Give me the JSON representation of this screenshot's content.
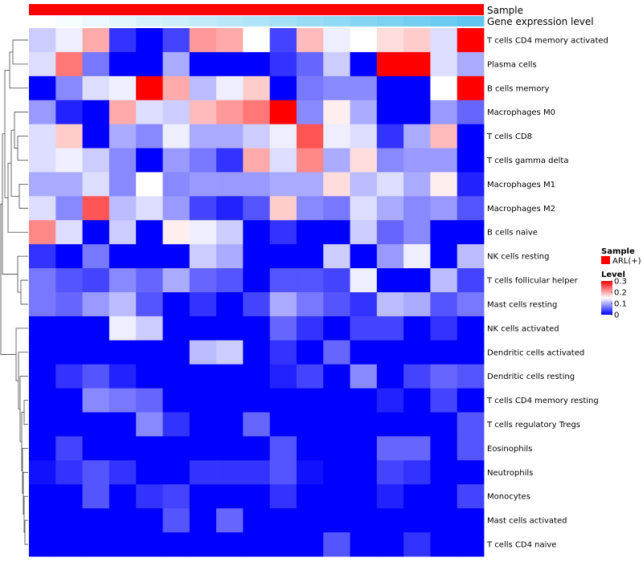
{
  "chart_data": {
    "type": "heatmap",
    "annotation_tracks": [
      {
        "name": "Sample",
        "color": "#ff0000"
      },
      {
        "name": "Gene expression level",
        "colors": [
          "#ffffff",
          "#5fc7ef"
        ]
      }
    ],
    "rows": [
      "T cells CD4 memory activated",
      "Plasma cells",
      "B cells memory",
      "Macrophages M0",
      "T cells CD8",
      "T cells gamma delta",
      "Macrophages M1",
      "Macrophages M2",
      "B cells naive",
      "NK cells resting",
      "T cells follicular helper",
      "Mast cells resting",
      "NK cells activated",
      "Dendritic cells activated",
      "Dendritic cells resting",
      "T cells CD4 memory resting",
      "T cells regulatory  Tregs",
      "Eosinophils",
      "Neutrophils",
      "Monocytes",
      "Mast cells activated",
      "T cells CD4 naive"
    ],
    "n_columns": 17,
    "values": [
      [
        0.12,
        0.14,
        0.2,
        0.03,
        0.0,
        0.04,
        0.21,
        0.2,
        0.15,
        0.04,
        0.19,
        0.14,
        0.15,
        0.17,
        0.18,
        0.13,
        0.3
      ],
      [
        0.13,
        0.23,
        0.07,
        0.0,
        0.0,
        0.1,
        0.0,
        0.0,
        0.0,
        0.03,
        0.06,
        0.12,
        0.0,
        0.3,
        0.3,
        0.13,
        0.1
      ],
      [
        0.0,
        0.08,
        0.13,
        0.14,
        0.3,
        0.2,
        0.11,
        0.14,
        0.18,
        0.0,
        0.07,
        0.08,
        0.08,
        0.0,
        0.0,
        0.15,
        0.3
      ],
      [
        0.09,
        0.02,
        0.0,
        0.2,
        0.13,
        0.12,
        0.19,
        0.21,
        0.23,
        0.3,
        0.08,
        0.16,
        0.1,
        0.0,
        0.0,
        0.09,
        0.06
      ],
      [
        0.13,
        0.18,
        0.0,
        0.1,
        0.08,
        0.14,
        0.1,
        0.1,
        0.12,
        0.14,
        0.25,
        0.14,
        0.13,
        0.03,
        0.1,
        0.19,
        0.0
      ],
      [
        0.13,
        0.14,
        0.12,
        0.08,
        0.0,
        0.09,
        0.07,
        0.03,
        0.2,
        0.13,
        0.22,
        0.1,
        0.17,
        0.08,
        0.09,
        0.09,
        0.0
      ],
      [
        0.1,
        0.1,
        0.13,
        0.08,
        0.15,
        0.08,
        0.09,
        0.09,
        0.09,
        0.1,
        0.1,
        0.17,
        0.11,
        0.13,
        0.1,
        0.16,
        0.02
      ],
      [
        0.13,
        0.08,
        0.25,
        0.11,
        0.13,
        0.09,
        0.04,
        0.02,
        0.05,
        0.18,
        0.08,
        0.07,
        0.13,
        0.1,
        0.08,
        0.09,
        0.05
      ],
      [
        0.22,
        0.13,
        0.0,
        0.12,
        0.0,
        0.16,
        0.14,
        0.12,
        0.0,
        0.03,
        0.0,
        0.0,
        0.12,
        0.06,
        0.08,
        0.0,
        0.0
      ],
      [
        0.03,
        0.0,
        0.07,
        0.0,
        0.0,
        0.0,
        0.12,
        0.1,
        0.0,
        0.0,
        0.0,
        0.12,
        0.0,
        0.09,
        0.14,
        0.0,
        0.11
      ],
      [
        0.07,
        0.05,
        0.04,
        0.08,
        0.06,
        0.1,
        0.06,
        0.05,
        0.0,
        0.05,
        0.05,
        0.04,
        0.14,
        0.0,
        0.0,
        0.11,
        0.04
      ],
      [
        0.07,
        0.06,
        0.09,
        0.11,
        0.05,
        0.0,
        0.03,
        0.0,
        0.04,
        0.1,
        0.07,
        0.05,
        0.03,
        0.11,
        0.1,
        0.05,
        0.07
      ],
      [
        0.0,
        0.0,
        0.0,
        0.14,
        0.12,
        0.0,
        0.0,
        0.0,
        0.0,
        0.06,
        0.03,
        0.0,
        0.04,
        0.04,
        0.0,
        0.03,
        0.0
      ],
      [
        0.0,
        0.0,
        0.0,
        0.0,
        0.0,
        0.0,
        0.11,
        0.12,
        0.0,
        0.03,
        0.0,
        0.06,
        0.0,
        0.0,
        0.0,
        0.0,
        0.0
      ],
      [
        0.0,
        0.03,
        0.05,
        0.02,
        0.0,
        0.0,
        0.0,
        0.0,
        0.0,
        0.02,
        0.04,
        0.0,
        0.08,
        0.0,
        0.04,
        0.06,
        0.05
      ],
      [
        0.0,
        0.0,
        0.08,
        0.07,
        0.06,
        0.0,
        0.0,
        0.0,
        0.0,
        0.0,
        0.0,
        0.0,
        0.0,
        0.02,
        0.0,
        0.04,
        0.0
      ],
      [
        0.0,
        0.0,
        0.0,
        0.0,
        0.08,
        0.03,
        0.0,
        0.0,
        0.06,
        0.0,
        0.0,
        0.0,
        0.0,
        0.0,
        0.0,
        0.0,
        0.05
      ],
      [
        0.0,
        0.04,
        0.0,
        0.0,
        0.0,
        0.0,
        0.0,
        0.0,
        0.0,
        0.05,
        0.0,
        0.0,
        0.0,
        0.06,
        0.06,
        0.0,
        0.05
      ],
      [
        0.01,
        0.03,
        0.05,
        0.03,
        0.0,
        0.0,
        0.03,
        0.03,
        0.03,
        0.05,
        0.01,
        0.0,
        0.0,
        0.04,
        0.03,
        0.0,
        0.0
      ],
      [
        0.0,
        0.0,
        0.05,
        0.0,
        0.03,
        0.04,
        0.0,
        0.0,
        0.0,
        0.03,
        0.0,
        0.0,
        0.0,
        0.02,
        0.0,
        0.0,
        0.04
      ],
      [
        0.0,
        0.0,
        0.0,
        0.0,
        0.0,
        0.05,
        0.0,
        0.06,
        0.0,
        0.0,
        0.0,
        0.0,
        0.0,
        0.0,
        0.0,
        0.0,
        0.0
      ],
      [
        0.0,
        0.0,
        0.0,
        0.0,
        0.0,
        0.0,
        0.0,
        0.0,
        0.0,
        0.0,
        0.0,
        0.05,
        0.0,
        0.0,
        0.03,
        0.0,
        0.0
      ]
    ],
    "color_scale": {
      "stops": [
        {
          "value": 0.0,
          "color": "#0000ff"
        },
        {
          "value": 0.15,
          "color": "#ffffff"
        },
        {
          "value": 0.3,
          "color": "#ff0000"
        }
      ]
    },
    "legend": {
      "placement": "right",
      "sample_title": "Sample",
      "sample_entry": "ARL(+)",
      "level_title": "Level",
      "level_ticks": [
        "0",
        "0.1",
        "0.2",
        "0.3"
      ]
    }
  }
}
